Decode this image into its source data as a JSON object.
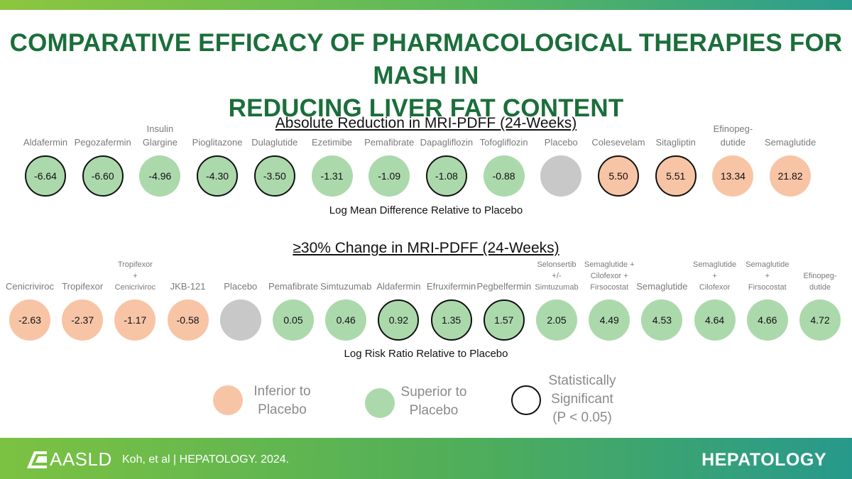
{
  "header": {
    "title_line1": "COMPARATIVE EFFICACY OF PHARMACOLOGICAL THERAPIES FOR MASH IN",
    "title_line2": "REDUCING LIVER FAT CONTENT"
  },
  "colors": {
    "inferior": "#f8c4a6",
    "superior": "#abd9ab",
    "placebo": "#c8c8c8",
    "title": "#1b6e3a"
  },
  "chart_data": [
    {
      "type": "bubble-row",
      "title": "Absolute Reduction in MRI-PDFF (24-Weeks)",
      "xlabel": "Log Mean Difference Relative to Placebo",
      "items": [
        {
          "name": "Aldafermin",
          "value": "-6.64",
          "group": "superior",
          "significant": true
        },
        {
          "name": "Pegozafermin",
          "value": "-6.60",
          "group": "superior",
          "significant": true
        },
        {
          "name": "Insulin\nGlargine",
          "value": "-4.96",
          "group": "superior",
          "significant": false
        },
        {
          "name": "Pioglitazone",
          "value": "-4.30",
          "group": "superior",
          "significant": true
        },
        {
          "name": "Dulaglutide",
          "value": "-3.50",
          "group": "superior",
          "significant": true
        },
        {
          "name": "Ezetimibe",
          "value": "-1.31",
          "group": "superior",
          "significant": false
        },
        {
          "name": "Pemafibrate",
          "value": "-1.09",
          "group": "superior",
          "significant": false
        },
        {
          "name": "Dapagliflozin",
          "value": "-1.08",
          "group": "superior",
          "significant": true
        },
        {
          "name": "Tofogliflozin",
          "value": "-0.88",
          "group": "superior",
          "significant": false
        },
        {
          "name": "Placebo",
          "value": "",
          "group": "placebo",
          "significant": false
        },
        {
          "name": "Colesevelam",
          "value": "5.50",
          "group": "inferior",
          "significant": true
        },
        {
          "name": "Sitagliptin",
          "value": "5.51",
          "group": "inferior",
          "significant": true
        },
        {
          "name": "Efinopeg-\ndutide",
          "value": "13.34",
          "group": "inferior",
          "significant": false
        },
        {
          "name": "Semaglutide",
          "value": "21.82",
          "group": "inferior",
          "significant": false
        }
      ]
    },
    {
      "type": "bubble-row",
      "title": "≥30% Change in MRI-PDFF (24-Weeks)",
      "xlabel": "Log Risk Ratio Relative to Placebo",
      "items": [
        {
          "name": "Cenicriviroc",
          "value": "-2.63",
          "group": "inferior",
          "significant": false
        },
        {
          "name": "Tropifexor",
          "value": "-2.37",
          "group": "inferior",
          "significant": false
        },
        {
          "name": "Tropifexor\n+\nCenicriviroc",
          "value": "-1.17",
          "group": "inferior",
          "significant": false
        },
        {
          "name": "JKB-121",
          "value": "-0.58",
          "group": "inferior",
          "significant": false
        },
        {
          "name": "Placebo",
          "value": "",
          "group": "placebo",
          "significant": false
        },
        {
          "name": "Pemafibrate",
          "value": "0.05",
          "group": "superior",
          "significant": false
        },
        {
          "name": "Simtuzumab",
          "value": "0.46",
          "group": "superior",
          "significant": false
        },
        {
          "name": "Aldafermin",
          "value": "0.92",
          "group": "superior",
          "significant": true
        },
        {
          "name": "Efruxifermin",
          "value": "1.35",
          "group": "superior",
          "significant": true
        },
        {
          "name": "Pegbelfermin",
          "value": "1.57",
          "group": "superior",
          "significant": true
        },
        {
          "name": "Selonsertib\n+/-\nSimtuzumab",
          "value": "2.05",
          "group": "superior",
          "significant": false
        },
        {
          "name": "Semaglutide +\nCilofexor +\nFirsocostat",
          "value": "4.49",
          "group": "superior",
          "significant": false
        },
        {
          "name": "Semaglutide",
          "value": "4.53",
          "group": "superior",
          "significant": false
        },
        {
          "name": "Semaglutide\n+\nCilofexor",
          "value": "4.64",
          "group": "superior",
          "significant": false
        },
        {
          "name": "Semaglutide\n+\nFirsocostat",
          "value": "4.66",
          "group": "superior",
          "significant": false
        },
        {
          "name": "Efinopeg-\ndutide",
          "value": "4.72",
          "group": "superior",
          "significant": false
        }
      ]
    }
  ],
  "legend": {
    "inferior_label": "Inferior to\nPlacebo",
    "superior_label": "Superior to\nPlacebo",
    "significant_label": "Statistically\nSignificant\n(P < 0.05)"
  },
  "footer": {
    "logo_text": "AASLD",
    "citation": "Koh, et al  |  HEPATOLOGY. 2024.",
    "journal": "HEPATOLOGY"
  }
}
